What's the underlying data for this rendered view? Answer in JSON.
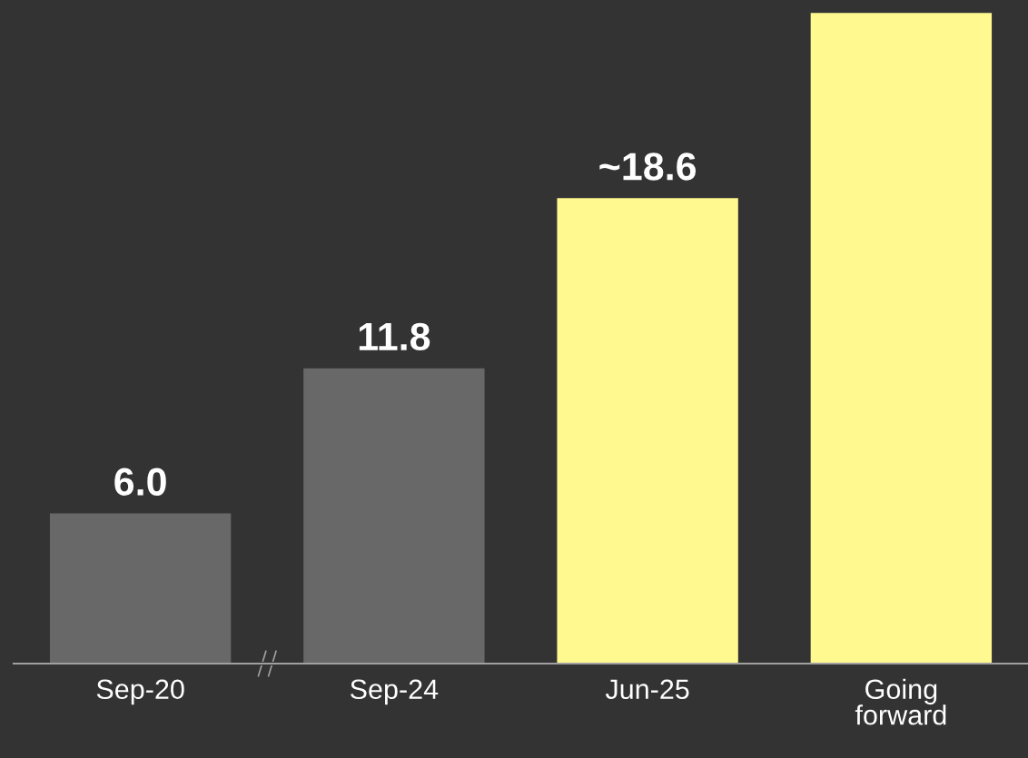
{
  "chart_data": {
    "type": "bar",
    "categories": [
      "Sep-20",
      "Sep-24",
      "Jun-25",
      "Going\nforward"
    ],
    "values": [
      6.0,
      11.8,
      18.6,
      26
    ],
    "colors": [
      "#686868",
      "#686868",
      "#fff98f",
      "#fff98f"
    ],
    "value_labels": [
      "6.0",
      "11.8",
      "~18.6",
      null
    ],
    "grid": false,
    "legend": false
  }
}
